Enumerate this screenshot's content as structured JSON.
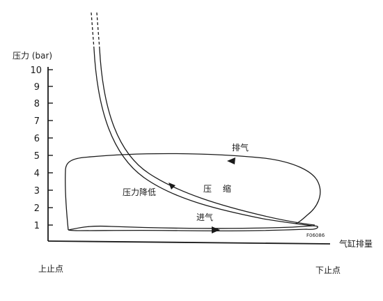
{
  "axes": {
    "y_title": "压力 (bar)",
    "x_title": "气缸排量",
    "y_ticks": [
      "1",
      "2",
      "3",
      "4",
      "5",
      "6",
      "7",
      "8",
      "9",
      "10"
    ],
    "x_left_label": "上止点",
    "x_right_label": "下止点"
  },
  "annotations": {
    "exhaust": "排气",
    "compression": "压 缩",
    "pressure_drop": "压力降低",
    "intake": "进气",
    "figure_code": "F06086"
  }
}
